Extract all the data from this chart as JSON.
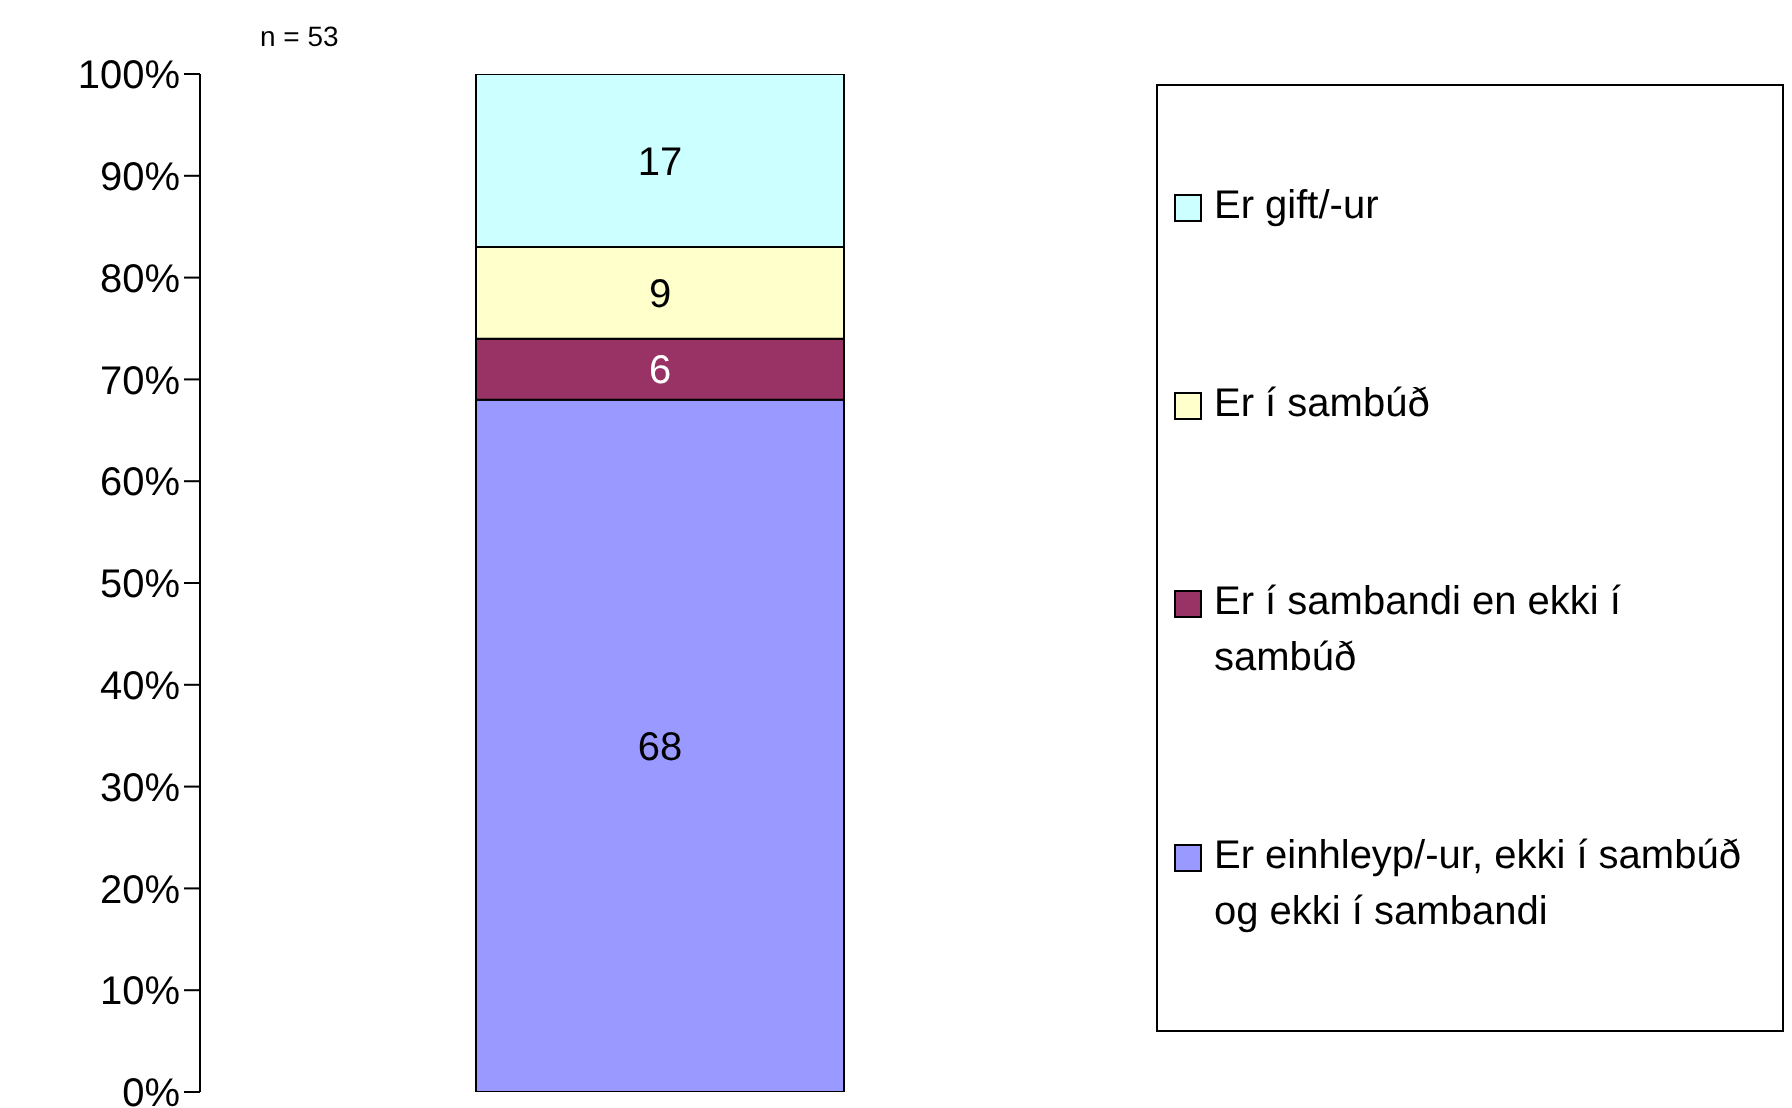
{
  "chart_data": {
    "type": "bar",
    "stacked": true,
    "categories": [
      null
    ],
    "series": [
      {
        "name": "Er einhleyp/-ur, ekki í sambúð og ekki í sambandi",
        "color": "#9999ff",
        "values": [
          68
        ]
      },
      {
        "name": "Er í sambandi en ekki í sambúð",
        "color": "#993366",
        "values": [
          6
        ]
      },
      {
        "name": "Er í sambúð",
        "color": "#ffffcc",
        "values": [
          9
        ]
      },
      {
        "name": "Er gift/-ur",
        "color": "#ccffff",
        "values": [
          17
        ]
      }
    ],
    "ylim": [
      0,
      100
    ],
    "yticks": [
      {
        "value": 0,
        "label": "0%"
      },
      {
        "value": 10,
        "label": "10%"
      },
      {
        "value": 20,
        "label": "20%"
      },
      {
        "value": 30,
        "label": "30%"
      },
      {
        "value": 40,
        "label": "40%"
      },
      {
        "value": 50,
        "label": "50%"
      },
      {
        "value": 60,
        "label": "60%"
      },
      {
        "value": 70,
        "label": "70%"
      },
      {
        "value": 80,
        "label": "80%"
      },
      {
        "value": 90,
        "label": "90%"
      },
      {
        "value": 100,
        "label": "100%"
      }
    ],
    "data_labels": true,
    "legend": "right",
    "grid": false,
    "annotations": [
      "n = 53"
    ]
  }
}
